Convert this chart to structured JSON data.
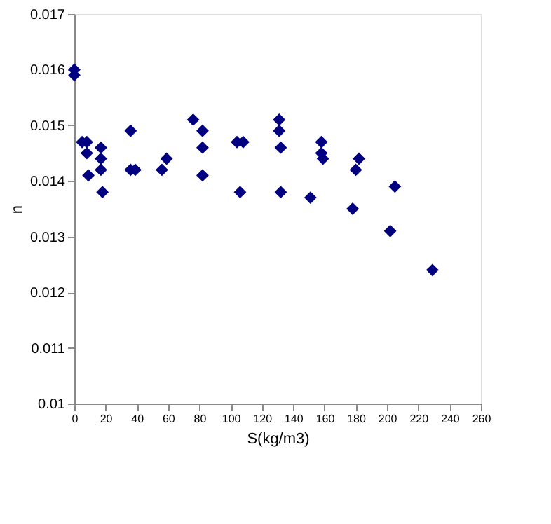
{
  "chart_data": {
    "type": "scatter",
    "xlabel": "S(kg/m3)",
    "ylabel": "n",
    "marker": "diamond",
    "grid": false,
    "xlim": [
      0,
      260
    ],
    "xticks": [
      0,
      20,
      40,
      60,
      80,
      100,
      120,
      140,
      160,
      180,
      200,
      220,
      240,
      260
    ],
    "ylim": [
      0.01,
      0.017
    ],
    "yticks": [
      0.01,
      0.011,
      0.012,
      0.013,
      0.014,
      0.015,
      0.016,
      0.017
    ],
    "series": [
      {
        "color": "#000080",
        "x": [
          0,
          0,
          5,
          8,
          8,
          9,
          17,
          17,
          17,
          18,
          36,
          36,
          39,
          56,
          59,
          76,
          82,
          82,
          82,
          104,
          108,
          131,
          131,
          132,
          106,
          132,
          158,
          158,
          159,
          182,
          180,
          151,
          178,
          205,
          202,
          229
        ],
        "values": [
          0.016,
          0.0159,
          0.0147,
          0.0147,
          0.0145,
          0.0141,
          0.0146,
          0.0144,
          0.0142,
          0.0138,
          0.0149,
          0.0142,
          0.0142,
          0.0142,
          0.0144,
          0.0151,
          0.0149,
          0.0146,
          0.0141,
          0.0147,
          0.0147,
          0.0151,
          0.0149,
          0.0146,
          0.0138,
          0.0138,
          0.0147,
          0.0145,
          0.0144,
          0.0144,
          0.0142,
          0.0137,
          0.0135,
          0.0139,
          0.0131,
          0.0124
        ]
      }
    ]
  }
}
